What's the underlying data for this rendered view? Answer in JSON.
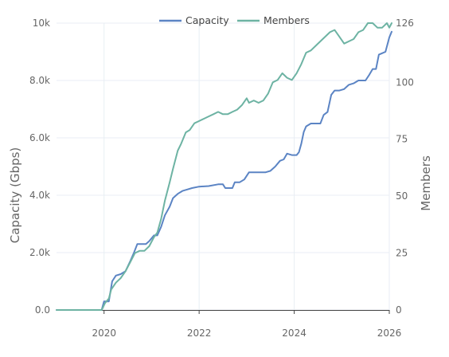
{
  "chart_data": {
    "type": "line",
    "title": "",
    "xlabel": "",
    "ylabel": "Capacity (Gbps)",
    "y2label": "Members",
    "xlim": [
      2019.0,
      2026.0
    ],
    "ylim": [
      0,
      10000
    ],
    "y2lim": [
      0,
      126
    ],
    "grid": true,
    "legend_position": "top-center",
    "x_ticks": [
      2020,
      2022,
      2024,
      2026
    ],
    "y_ticks": [
      {
        "value": 0,
        "label": "0.0"
      },
      {
        "value": 2000,
        "label": "2.0k"
      },
      {
        "value": 4000,
        "label": "4.0k"
      },
      {
        "value": 6000,
        "label": "6.0k"
      },
      {
        "value": 8000,
        "label": "8.0k"
      },
      {
        "value": 10000,
        "label": "10k"
      }
    ],
    "y2_ticks": [
      {
        "value": 0,
        "label": "0"
      },
      {
        "value": 25,
        "label": "25"
      },
      {
        "value": 50,
        "label": "50"
      },
      {
        "value": 75,
        "label": "75"
      },
      {
        "value": 100,
        "label": "100"
      },
      {
        "value": 126,
        "label": "126"
      }
    ],
    "series": [
      {
        "name": "Capacity",
        "axis": "left",
        "color": "#5b84c4",
        "points": [
          [
            2019.0,
            0
          ],
          [
            2019.95,
            0
          ],
          [
            2020.0,
            300
          ],
          [
            2020.1,
            300
          ],
          [
            2020.17,
            1000
          ],
          [
            2020.25,
            1200
          ],
          [
            2020.35,
            1250
          ],
          [
            2020.45,
            1350
          ],
          [
            2020.55,
            1700
          ],
          [
            2020.63,
            2000
          ],
          [
            2020.7,
            2300
          ],
          [
            2020.8,
            2300
          ],
          [
            2020.88,
            2300
          ],
          [
            2020.95,
            2400
          ],
          [
            2021.05,
            2600
          ],
          [
            2021.12,
            2600
          ],
          [
            2021.2,
            2900
          ],
          [
            2021.28,
            3300
          ],
          [
            2021.38,
            3600
          ],
          [
            2021.45,
            3900
          ],
          [
            2021.55,
            4050
          ],
          [
            2021.65,
            4150
          ],
          [
            2021.75,
            4200
          ],
          [
            2021.85,
            4250
          ],
          [
            2022.0,
            4300
          ],
          [
            2022.2,
            4320
          ],
          [
            2022.4,
            4380
          ],
          [
            2022.5,
            4380
          ],
          [
            2022.55,
            4250
          ],
          [
            2022.7,
            4250
          ],
          [
            2022.75,
            4450
          ],
          [
            2022.85,
            4450
          ],
          [
            2022.95,
            4550
          ],
          [
            2023.05,
            4800
          ],
          [
            2023.2,
            4800
          ],
          [
            2023.4,
            4800
          ],
          [
            2023.5,
            4850
          ],
          [
            2023.6,
            5000
          ],
          [
            2023.7,
            5200
          ],
          [
            2023.78,
            5250
          ],
          [
            2023.85,
            5450
          ],
          [
            2023.95,
            5400
          ],
          [
            2024.05,
            5400
          ],
          [
            2024.1,
            5500
          ],
          [
            2024.15,
            5800
          ],
          [
            2024.2,
            6200
          ],
          [
            2024.25,
            6400
          ],
          [
            2024.35,
            6500
          ],
          [
            2024.45,
            6500
          ],
          [
            2024.55,
            6500
          ],
          [
            2024.62,
            6800
          ],
          [
            2024.7,
            6900
          ],
          [
            2024.78,
            7500
          ],
          [
            2024.85,
            7650
          ],
          [
            2024.95,
            7650
          ],
          [
            2025.05,
            7700
          ],
          [
            2025.15,
            7850
          ],
          [
            2025.25,
            7900
          ],
          [
            2025.35,
            8000
          ],
          [
            2025.5,
            8000
          ],
          [
            2025.58,
            8200
          ],
          [
            2025.65,
            8400
          ],
          [
            2025.72,
            8400
          ],
          [
            2025.78,
            8900
          ],
          [
            2025.85,
            8950
          ],
          [
            2025.92,
            9000
          ],
          [
            2026.0,
            9500
          ],
          [
            2026.05,
            9700
          ]
        ]
      },
      {
        "name": "Members",
        "axis": "right",
        "color": "#6db3a3",
        "points": [
          [
            2019.0,
            0
          ],
          [
            2019.95,
            0
          ],
          [
            2020.02,
            3
          ],
          [
            2020.1,
            5
          ],
          [
            2020.15,
            9
          ],
          [
            2020.25,
            12
          ],
          [
            2020.35,
            14
          ],
          [
            2020.45,
            17
          ],
          [
            2020.55,
            21
          ],
          [
            2020.65,
            25
          ],
          [
            2020.75,
            26
          ],
          [
            2020.85,
            26
          ],
          [
            2020.95,
            28
          ],
          [
            2021.05,
            32
          ],
          [
            2021.12,
            34
          ],
          [
            2021.2,
            40
          ],
          [
            2021.28,
            48
          ],
          [
            2021.38,
            56
          ],
          [
            2021.45,
            62
          ],
          [
            2021.55,
            70
          ],
          [
            2021.62,
            73
          ],
          [
            2021.72,
            78
          ],
          [
            2021.8,
            79
          ],
          [
            2021.9,
            82
          ],
          [
            2022.0,
            83
          ],
          [
            2022.1,
            84
          ],
          [
            2022.2,
            85
          ],
          [
            2022.3,
            86
          ],
          [
            2022.4,
            87
          ],
          [
            2022.5,
            86
          ],
          [
            2022.6,
            86
          ],
          [
            2022.7,
            87
          ],
          [
            2022.8,
            88
          ],
          [
            2022.9,
            90
          ],
          [
            2023.0,
            93
          ],
          [
            2023.05,
            91
          ],
          [
            2023.15,
            92
          ],
          [
            2023.25,
            91
          ],
          [
            2023.35,
            92
          ],
          [
            2023.45,
            95
          ],
          [
            2023.55,
            100
          ],
          [
            2023.65,
            101
          ],
          [
            2023.75,
            104
          ],
          [
            2023.85,
            102
          ],
          [
            2023.95,
            101
          ],
          [
            2024.05,
            104
          ],
          [
            2024.15,
            108
          ],
          [
            2024.25,
            113
          ],
          [
            2024.35,
            114
          ],
          [
            2024.45,
            116
          ],
          [
            2024.55,
            118
          ],
          [
            2024.65,
            120
          ],
          [
            2024.75,
            122
          ],
          [
            2024.85,
            123
          ],
          [
            2024.95,
            120
          ],
          [
            2025.05,
            117
          ],
          [
            2025.15,
            118
          ],
          [
            2025.25,
            119
          ],
          [
            2025.35,
            122
          ],
          [
            2025.45,
            123
          ],
          [
            2025.55,
            126
          ],
          [
            2025.65,
            126
          ],
          [
            2025.75,
            124
          ],
          [
            2025.85,
            124
          ],
          [
            2025.95,
            126
          ],
          [
            2026.0,
            124
          ],
          [
            2026.05,
            126
          ]
        ]
      }
    ]
  }
}
